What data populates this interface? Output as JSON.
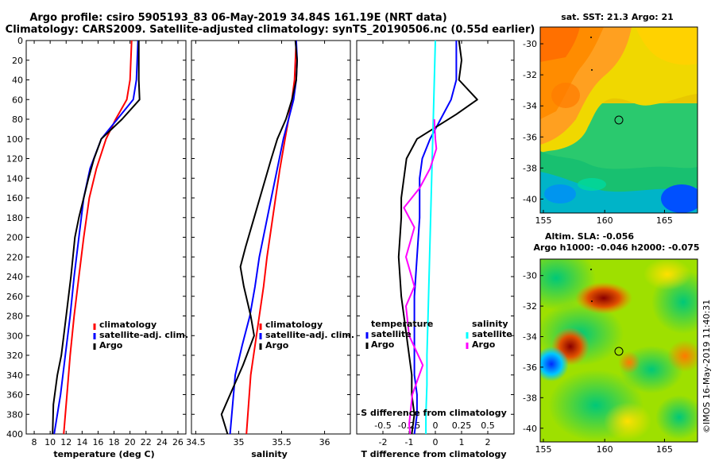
{
  "title_line1": "Argo profile: csiro 5905193_83 06-May-2019 34.84S 161.19E (NRT data)",
  "title_line2": "Climatology: CARS2009. Satellite-adjusted climatology: synTS_20190506.nc (0.55d earlier)",
  "side_label": "©IMOS 16-May-2019 11:40:31",
  "colors": {
    "climatology": "#ff0000",
    "satellite": "#0000ff",
    "argo": "#000000",
    "s_satellite": "#00ffff",
    "s_argo": "#ff00ff"
  },
  "chart_data": [
    {
      "type": "line",
      "id": "temperature",
      "xlabel": "temperature (deg C)",
      "ylabel": "",
      "xlim": [
        7,
        27
      ],
      "ylim": [
        400,
        0
      ],
      "xticks": [
        8,
        10,
        12,
        14,
        16,
        18,
        20,
        22,
        24,
        26
      ],
      "xtick_labels": [
        "8",
        "10",
        "12",
        "14",
        "16",
        "18",
        "20",
        "22",
        "24",
        "26"
      ],
      "yticks": [
        0,
        20,
        40,
        60,
        80,
        100,
        120,
        140,
        160,
        180,
        200,
        220,
        240,
        260,
        280,
        300,
        320,
        340,
        360,
        380,
        400
      ],
      "ytick_labels": [
        "0",
        "20",
        "40",
        "60",
        "80",
        "100",
        "120",
        "140",
        "160",
        "180",
        "200",
        "220",
        "240",
        "260",
        "280",
        "300",
        "320",
        "340",
        "360",
        "380",
        "400"
      ],
      "legend": {
        "position": "lower-right",
        "entries": [
          "climatology",
          "satellite-adj. clim.",
          "Argo"
        ]
      },
      "series": [
        {
          "name": "climatology",
          "color_key": "climatology",
          "x": [
            20.2,
            20.1,
            20.0,
            19.6,
            18.2,
            17.0,
            15.8,
            14.9,
            14.2,
            13.6,
            13.0,
            12.5,
            12.1,
            11.7
          ],
          "y": [
            0,
            20,
            40,
            60,
            80,
            100,
            130,
            160,
            200,
            240,
            280,
            320,
            360,
            400
          ]
        },
        {
          "name": "satellite-adj. clim.",
          "color_key": "satellite",
          "x": [
            21.0,
            20.9,
            20.8,
            20.4,
            18.4,
            16.4,
            15.0,
            14.2,
            13.6,
            13.0,
            12.5,
            11.9,
            11.3,
            10.5
          ],
          "y": [
            0,
            20,
            40,
            60,
            80,
            100,
            130,
            160,
            200,
            240,
            280,
            320,
            360,
            400
          ]
        },
        {
          "name": "Argo",
          "color_key": "argo",
          "x": [
            21.1,
            21.1,
            21.1,
            21.2,
            19.0,
            16.4,
            15.5,
            14.8,
            14.2,
            13.6,
            13.1,
            12.6,
            12.0,
            11.4,
            10.9,
            10.4,
            10.3
          ],
          "y": [
            0,
            20,
            40,
            60,
            80,
            100,
            120,
            140,
            160,
            180,
            200,
            240,
            280,
            320,
            340,
            370,
            400
          ]
        }
      ]
    },
    {
      "type": "line",
      "id": "salinity",
      "xlabel": "salinity",
      "ylabel": "",
      "xlim": [
        34.45,
        36.3
      ],
      "ylim": [
        400,
        0
      ],
      "xticks": [
        34.5,
        35,
        35.5,
        36
      ],
      "xtick_labels": [
        "34.5",
        "35",
        "35.5",
        "36"
      ],
      "legend": {
        "position": "lower-right",
        "entries": [
          "climatology",
          "satellite-adj. clim.",
          "Argo"
        ]
      },
      "series": [
        {
          "name": "climatology",
          "color_key": "climatology",
          "x": [
            35.67,
            35.66,
            35.65,
            35.62,
            35.58,
            35.54,
            35.48,
            35.43,
            35.38,
            35.33,
            35.29,
            35.24,
            35.19,
            35.14,
            35.09
          ],
          "y": [
            0,
            20,
            40,
            60,
            80,
            100,
            130,
            160,
            190,
            220,
            250,
            280,
            310,
            340,
            400
          ]
        },
        {
          "name": "satellite-adj. clim.",
          "color_key": "satellite",
          "x": [
            35.67,
            35.68,
            35.67,
            35.64,
            35.58,
            35.52,
            35.45,
            35.38,
            35.31,
            35.24,
            35.19,
            35.13,
            35.04,
            34.96,
            34.9
          ],
          "y": [
            0,
            20,
            40,
            60,
            80,
            100,
            130,
            160,
            190,
            220,
            250,
            280,
            310,
            340,
            400
          ]
        },
        {
          "name": "Argo",
          "color_key": "argo",
          "x": [
            35.66,
            35.68,
            35.67,
            35.62,
            35.55,
            35.45,
            35.38,
            35.28,
            35.18,
            35.08,
            35.02,
            35.06,
            35.14,
            35.18,
            35.05,
            34.9,
            34.8,
            34.87
          ],
          "y": [
            0,
            20,
            40,
            60,
            80,
            100,
            120,
            150,
            180,
            210,
            230,
            250,
            280,
            300,
            330,
            360,
            380,
            400
          ]
        }
      ]
    },
    {
      "type": "line",
      "id": "difference",
      "xlabel": "T difference from climatology",
      "ylabel": "",
      "xlim": [
        -3,
        3
      ],
      "ylim": [
        400,
        0
      ],
      "xticks": [
        -2,
        -1,
        0,
        1,
        2
      ],
      "xtick_labels": [
        "-2",
        "-1",
        "0",
        "1",
        "2"
      ],
      "s_axis_label": "S difference from climatology",
      "s_xlim": [
        -0.75,
        0.75
      ],
      "s_xticks": [
        -0.5,
        -0.25,
        0,
        0.25,
        0.5
      ],
      "s_xtick_labels": [
        "-0.5",
        "-0.25",
        "0",
        "0.25",
        "0.5"
      ],
      "legend": {
        "position": "lower",
        "temperature_title": "temperature",
        "salinity_title": "salinity",
        "entries": [
          "satellite",
          "Argo",
          "satellite",
          "Argo"
        ]
      },
      "series": [
        {
          "name": "T satellite",
          "color_key": "satellite",
          "axis": "T",
          "x": [
            0.8,
            0.8,
            0.8,
            0.6,
            0.2,
            -0.2,
            -0.5,
            -0.6,
            -0.6,
            -0.6,
            -0.7,
            -0.8,
            -0.8,
            -0.8,
            -0.7,
            -0.7,
            -0.8
          ],
          "y": [
            0,
            20,
            40,
            60,
            80,
            100,
            120,
            140,
            160,
            180,
            220,
            260,
            300,
            340,
            360,
            380,
            400
          ]
        },
        {
          "name": "T Argo",
          "color_key": "argo",
          "axis": "T",
          "x": [
            0.9,
            1.0,
            0.9,
            1.6,
            0.8,
            -0.7,
            -1.1,
            -1.2,
            -1.3,
            -1.3,
            -1.4,
            -1.3,
            -1.1,
            -0.9,
            -0.9,
            -0.8,
            -0.9
          ],
          "y": [
            0,
            20,
            40,
            60,
            75,
            100,
            120,
            140,
            160,
            180,
            220,
            260,
            300,
            340,
            360,
            380,
            400
          ]
        },
        {
          "name": "S satellite",
          "color_key": "s_satellite",
          "axis": "S",
          "x": [
            0.0,
            -0.01,
            -0.02,
            -0.03,
            -0.04,
            -0.05,
            -0.06,
            -0.07,
            -0.08,
            -0.08,
            -0.09,
            -0.09
          ],
          "y": [
            0,
            40,
            80,
            120,
            160,
            200,
            240,
            280,
            320,
            350,
            380,
            400
          ]
        },
        {
          "name": "S Argo",
          "color_key": "s_argo",
          "axis": "S",
          "x": [
            -0.01,
            0.0,
            0.01,
            -0.05,
            -0.15,
            -0.3,
            -0.2,
            -0.28,
            -0.2,
            -0.28,
            -0.25,
            -0.12,
            -0.22,
            -0.25,
            -0.24
          ],
          "y": [
            80,
            100,
            110,
            130,
            150,
            170,
            190,
            220,
            250,
            270,
            300,
            330,
            360,
            390,
            400
          ]
        }
      ]
    }
  ],
  "maps": [
    {
      "title": "sat. SST: 21.3 Argo: 21",
      "title2": "",
      "lon_ticks": [
        "155",
        "160",
        "165"
      ],
      "lat_ticks": [
        "-30",
        "-32",
        "-34",
        "-36",
        "-38",
        "-40"
      ]
    },
    {
      "title": "Altim. SLA: -0.056",
      "title2": "Argo h1000: -0.046 h2000: -0.075",
      "lon_ticks": [
        "155",
        "160",
        "165"
      ],
      "lat_ticks": [
        "-30",
        "-32",
        "-34",
        "-36",
        "-38",
        "-40"
      ]
    }
  ]
}
